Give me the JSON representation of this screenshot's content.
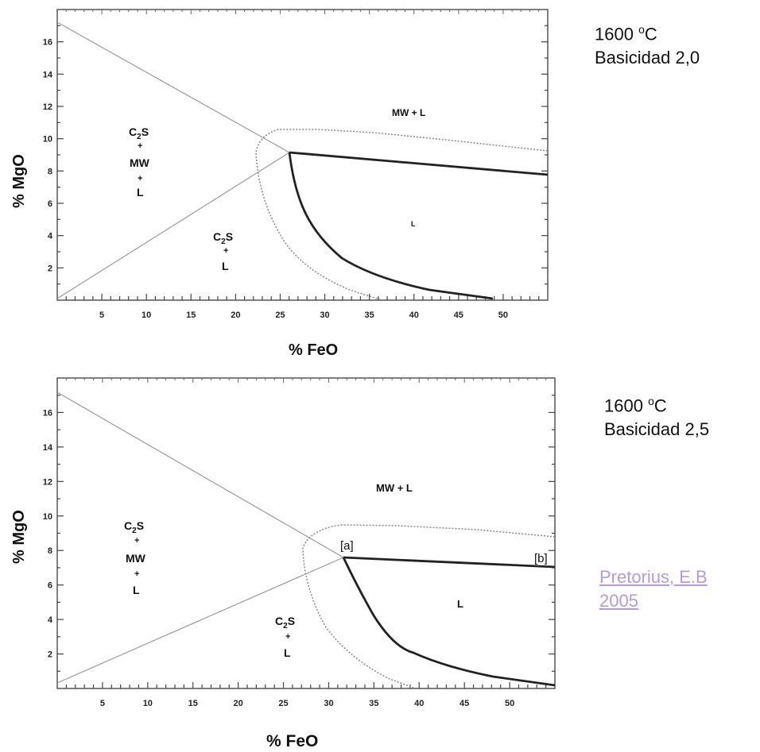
{
  "diagram_top": {
    "ylabel": "% MgO",
    "xlabel": "% FeO",
    "x_ticks": [
      "5",
      "10",
      "15",
      "20",
      "25",
      "30",
      "35",
      "40",
      "45",
      "50"
    ],
    "y_ticks": [
      "2",
      "4",
      "6",
      "8",
      "10",
      "12",
      "14",
      "16"
    ],
    "regions": {
      "mw_l": "MW + L",
      "l": "L",
      "c2s_mw_l_top": "C",
      "c2s_mw_l_sub": "2",
      "c2s_mw_l_s": "S",
      "c2s_mw_l_mw": "MW",
      "c2s_mw_l_l": "L",
      "c2s_l_top": "C",
      "c2s_l_sub": "2",
      "c2s_l_s": "S",
      "c2s_l_l": "L",
      "plus": "+"
    },
    "caption_temp_value": "1600 ",
    "caption_temp_unit": "o",
    "caption_temp_c": "C",
    "caption_basicity": "Basicidad 2,0"
  },
  "diagram_bottom": {
    "ylabel": "% MgO",
    "xlabel": "% FeO",
    "x_ticks": [
      "5",
      "10",
      "15",
      "20",
      "25",
      "30",
      "35",
      "40",
      "45",
      "50"
    ],
    "y_ticks": [
      "2",
      "4",
      "6",
      "8",
      "10",
      "12",
      "14",
      "16"
    ],
    "regions": {
      "mw_l": "MW + L",
      "l": "L",
      "a": "[a]",
      "b": "[b]",
      "c2s_mw_l_top": "C",
      "c2s_mw_l_sub": "2",
      "c2s_mw_l_s": "S",
      "c2s_mw_l_mw": "MW",
      "c2s_mw_l_l": "L",
      "c2s_l_top": "C",
      "c2s_l_sub": "2",
      "c2s_l_s": "S",
      "c2s_l_l": "L",
      "plus": "+"
    },
    "caption_temp_value": "1600 ",
    "caption_temp_unit": "o",
    "caption_temp_c": "C",
    "caption_basicity": "Basicidad 2,5"
  },
  "reference": {
    "line1": "Pretorius, E.B",
    "line2": "2005"
  },
  "colors": {
    "boundary": "#222222",
    "thin_line": "#9a9a9a",
    "dotted": "#888888",
    "link": "#b69bd6"
  }
}
